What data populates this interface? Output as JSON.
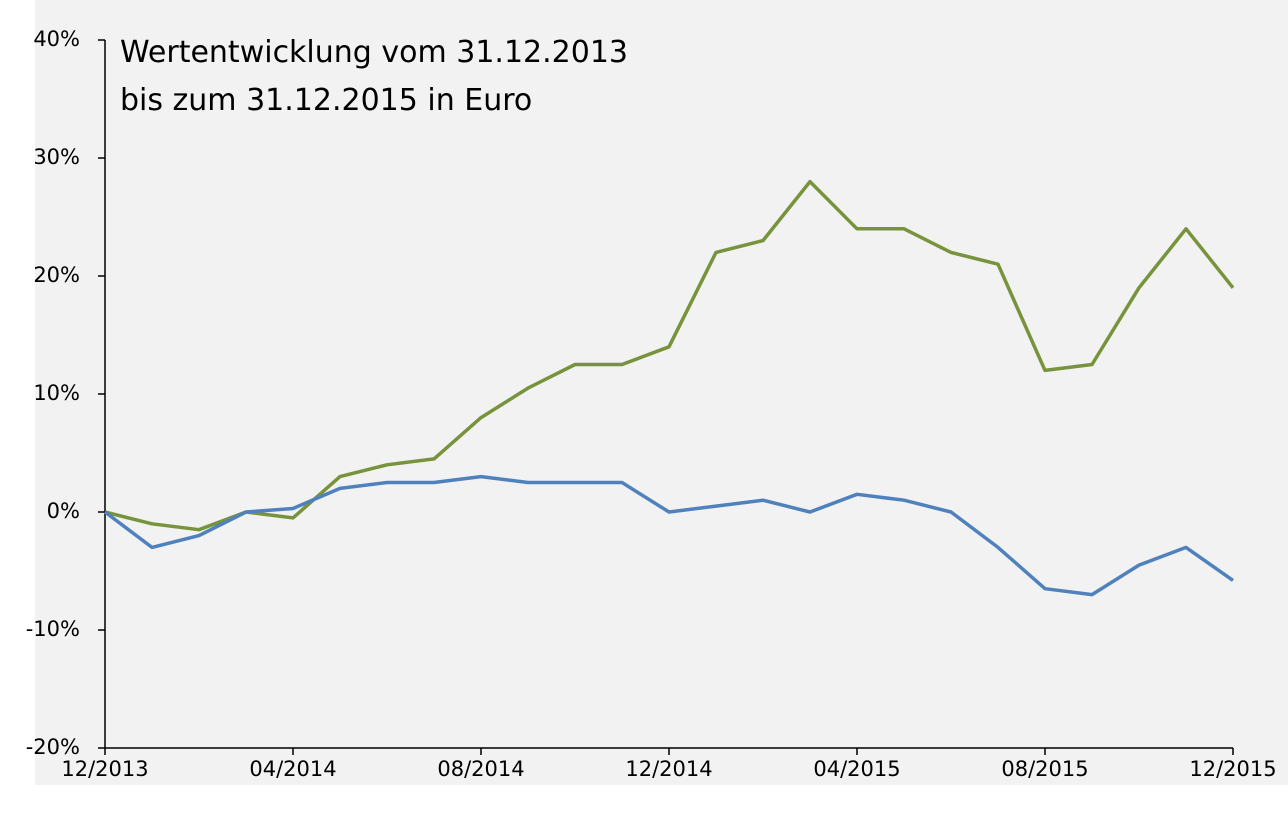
{
  "chart_data": {
    "type": "line",
    "title": [
      "Wertentwicklung vom 31.12.2013",
      "bis zum 31.12.2015 in Euro"
    ],
    "x": [
      "12/2013",
      "01/2014",
      "02/2014",
      "03/2014",
      "04/2014",
      "05/2014",
      "06/2014",
      "07/2014",
      "08/2014",
      "09/2014",
      "10/2014",
      "11/2014",
      "12/2014",
      "01/2015",
      "02/2015",
      "03/2015",
      "04/2015",
      "05/2015",
      "06/2015",
      "07/2015",
      "08/2015",
      "09/2015",
      "10/2015",
      "11/2015",
      "12/2015"
    ],
    "series": [
      {
        "color": "#77933c",
        "values": [
          0,
          -1,
          -1.5,
          0,
          -0.5,
          3,
          4,
          4.5,
          8,
          10.5,
          12.5,
          12.5,
          14,
          22,
          23,
          28,
          24,
          24,
          22,
          21,
          12,
          12.5,
          19,
          24,
          19
        ]
      },
      {
        "color": "#4f81bd",
        "values": [
          0,
          -3,
          -2,
          0,
          0.3,
          2,
          2.5,
          2.5,
          3,
          2.5,
          2.5,
          2.5,
          0,
          0.5,
          1,
          0,
          1.5,
          1,
          0,
          -3,
          -6.5,
          -7,
          -4.5,
          -3,
          -5.8
        ]
      }
    ],
    "ylim": [
      -20,
      40
    ],
    "yticks": [
      {
        "value": -20,
        "label": "-20%"
      },
      {
        "value": -10,
        "label": "-10%"
      },
      {
        "value": 0,
        "label": "0%"
      },
      {
        "value": 10,
        "label": "10%"
      },
      {
        "value": 20,
        "label": "20%"
      },
      {
        "value": 30,
        "label": "30%"
      },
      {
        "value": 40,
        "label": "40%"
      }
    ],
    "xticks": [
      "12/2013",
      "04/2014",
      "08/2014",
      "12/2014",
      "04/2015",
      "08/2015",
      "12/2015"
    ]
  }
}
